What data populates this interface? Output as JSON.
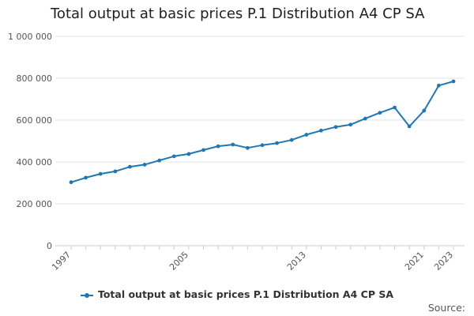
{
  "chart_data": {
    "type": "line",
    "title": "Total output at basic prices P.1 Distribution A4 CP SA",
    "xlabel": "",
    "ylabel": "",
    "x": [
      1997,
      1998,
      1999,
      2000,
      2001,
      2002,
      2003,
      2004,
      2005,
      2006,
      2007,
      2008,
      2009,
      2010,
      2011,
      2012,
      2013,
      2014,
      2015,
      2016,
      2017,
      2018,
      2019,
      2020,
      2021,
      2022,
      2023
    ],
    "x_tick_labels": [
      "1997",
      "2005",
      "2013",
      "2021",
      "2023"
    ],
    "ylim": [
      0,
      1000000
    ],
    "y_ticks": [
      0,
      200000,
      400000,
      600000,
      800000,
      1000000
    ],
    "y_tick_labels": [
      "0",
      "200 000",
      "400 000",
      "600 000",
      "800 000",
      "1 000 000"
    ],
    "grid": true,
    "legend_position": "bottom",
    "color": "#1f77b4",
    "series": [
      {
        "name": "Total output at basic prices P.1 Distribution A4 CP SA",
        "values": [
          303000,
          325000,
          343000,
          355000,
          377000,
          387000,
          407000,
          427000,
          438000,
          457000,
          475000,
          483000,
          467000,
          480000,
          490000,
          505000,
          530000,
          550000,
          567000,
          578000,
          607000,
          635000,
          660000,
          570000,
          645000,
          765000,
          785000
        ]
      }
    ]
  },
  "footer": {
    "source_label": "Source:"
  }
}
